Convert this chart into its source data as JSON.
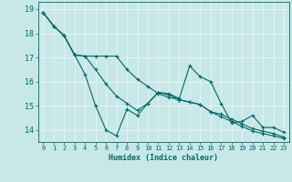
{
  "xlabel": "Humidex (Indice chaleur)",
  "background_color": "#c8e8e8",
  "grid_color": "#e8f4f4",
  "line_color": "#006868",
  "spine_color": "#006868",
  "xlim": [
    -0.5,
    23.5
  ],
  "ylim": [
    13.5,
    19.3
  ],
  "yticks": [
    14,
    15,
    16,
    17,
    18,
    19
  ],
  "xticks": [
    0,
    1,
    2,
    3,
    4,
    5,
    6,
    7,
    8,
    9,
    10,
    11,
    12,
    13,
    14,
    15,
    16,
    17,
    18,
    19,
    20,
    21,
    22,
    23
  ],
  "series": [
    [
      18.85,
      18.3,
      17.9,
      17.1,
      16.3,
      15.0,
      14.0,
      13.75,
      14.85,
      14.6,
      15.1,
      15.55,
      15.5,
      15.3,
      16.65,
      16.2,
      16.0,
      15.1,
      14.3,
      14.35,
      14.6,
      14.1,
      14.1,
      13.9
    ],
    [
      18.85,
      18.3,
      17.9,
      17.1,
      17.05,
      17.05,
      17.05,
      17.05,
      16.5,
      16.1,
      15.8,
      15.5,
      15.35,
      15.25,
      15.15,
      15.05,
      14.75,
      14.55,
      14.35,
      14.15,
      13.95,
      13.85,
      13.75,
      13.65
    ],
    [
      18.85,
      18.3,
      17.9,
      17.1,
      17.05,
      16.5,
      15.9,
      15.4,
      15.1,
      14.8,
      15.1,
      15.55,
      15.45,
      15.25,
      15.15,
      15.05,
      14.75,
      14.65,
      14.45,
      14.25,
      14.05,
      13.95,
      13.85,
      13.7
    ]
  ]
}
